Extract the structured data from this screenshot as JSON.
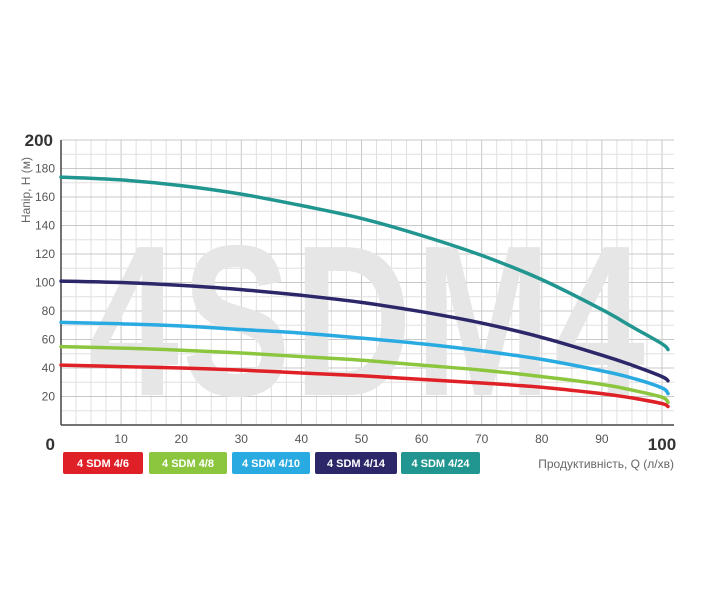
{
  "chart_data": {
    "type": "line",
    "watermark": "4SDM4",
    "xlabel": "Продуктивність, Q (л/хв)",
    "ylabel": "Напір, Н (м)",
    "xlim": [
      0,
      102
    ],
    "ylim": [
      0,
      200
    ],
    "x_ticks": [
      "0",
      "10",
      "20",
      "30",
      "40",
      "50",
      "60",
      "70",
      "80",
      "90",
      "100"
    ],
    "y_ticks": [
      "20",
      "40",
      "60",
      "80",
      "100",
      "120",
      "140",
      "160",
      "180",
      "200"
    ],
    "grid": true,
    "legend_position": "bottom-left",
    "series": [
      {
        "name": "4 SDM 4/6",
        "color": "#e02027",
        "x": [
          0,
          10,
          20,
          30,
          40,
          50,
          60,
          70,
          80,
          90,
          95,
          100,
          101
        ],
        "y": [
          42,
          41,
          40,
          38.5,
          36.5,
          34.5,
          32,
          29.5,
          26.5,
          22,
          19,
          15,
          13
        ]
      },
      {
        "name": "4 SDM 4/8",
        "color": "#8cc63f",
        "x": [
          0,
          10,
          20,
          30,
          40,
          50,
          60,
          70,
          80,
          90,
          95,
          100,
          101
        ],
        "y": [
          55,
          54,
          52.5,
          50.5,
          48,
          45.5,
          42,
          38.5,
          34,
          28.5,
          24.5,
          19.5,
          16
        ]
      },
      {
        "name": "4 SDM 4/10",
        "color": "#29abe2",
        "x": [
          0,
          10,
          20,
          30,
          40,
          50,
          60,
          70,
          80,
          90,
          95,
          100,
          101
        ],
        "y": [
          72,
          71,
          69.5,
          67,
          64.5,
          61,
          57,
          52,
          46,
          38,
          33,
          26,
          22
        ]
      },
      {
        "name": "4 SDM 4/14",
        "color": "#2b2769",
        "x": [
          0,
          10,
          20,
          30,
          40,
          50,
          60,
          70,
          80,
          90,
          95,
          100,
          101
        ],
        "y": [
          101,
          100,
          98,
          95,
          91,
          86,
          79.5,
          71.5,
          61.5,
          49,
          42,
          34,
          31
        ]
      },
      {
        "name": "4 SDM 4/24",
        "color": "#21958f",
        "x": [
          0,
          10,
          20,
          30,
          40,
          50,
          60,
          70,
          80,
          90,
          95,
          100,
          101
        ],
        "y": [
          174,
          172,
          168,
          162,
          154,
          145,
          133,
          119,
          102,
          81,
          69,
          57,
          53
        ]
      }
    ]
  }
}
